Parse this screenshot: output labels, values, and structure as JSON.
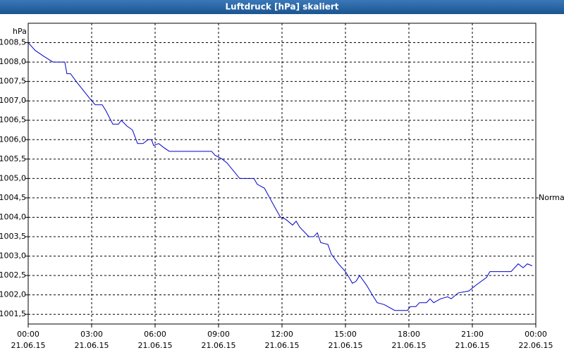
{
  "chart_data": {
    "type": "line",
    "title": "Luftdruck [hPa] skaliert",
    "y_unit_label": "hPa",
    "annotation": {
      "text": "Normal",
      "value": 1004.5
    },
    "grid": true,
    "xlim": [
      0,
      24
    ],
    "ylim": [
      1001.25,
      1009.0
    ],
    "xticks": [
      {
        "value": 0,
        "label": "00:00"
      },
      {
        "value": 3,
        "label": "03:00"
      },
      {
        "value": 6,
        "label": "06:00"
      },
      {
        "value": 9,
        "label": "09:00"
      },
      {
        "value": 12,
        "label": "12:00"
      },
      {
        "value": 15,
        "label": "15:00"
      },
      {
        "value": 18,
        "label": "18:00"
      },
      {
        "value": 21,
        "label": "21:00"
      },
      {
        "value": 24,
        "label": "00:00"
      }
    ],
    "xtick_dates": [
      "21.06.15",
      "21.06.15",
      "21.06.15",
      "21.06.15",
      "21.06.15",
      "21.06.15",
      "21.06.15",
      "21.06.15",
      "22.06.15"
    ],
    "yticks": [
      {
        "value": 1001.5,
        "label": "1001,5"
      },
      {
        "value": 1002.0,
        "label": "1002,0"
      },
      {
        "value": 1002.5,
        "label": "1002,5"
      },
      {
        "value": 1003.0,
        "label": "1003,0"
      },
      {
        "value": 1003.5,
        "label": "1003,5"
      },
      {
        "value": 1004.0,
        "label": "1004,0"
      },
      {
        "value": 1004.5,
        "label": "1004,5"
      },
      {
        "value": 1005.0,
        "label": "1005,0"
      },
      {
        "value": 1005.5,
        "label": "1005,5"
      },
      {
        "value": 1006.0,
        "label": "1006,0"
      },
      {
        "value": 1006.5,
        "label": "1006,5"
      },
      {
        "value": 1007.0,
        "label": "1007,0"
      },
      {
        "value": 1007.5,
        "label": "1007,5"
      },
      {
        "value": 1008.0,
        "label": "1008,0"
      },
      {
        "value": 1008.5,
        "label": "1008,5"
      }
    ],
    "x": [
      0,
      0.33,
      0.73,
      1.17,
      1.73,
      1.83,
      2.0,
      2.27,
      3.0,
      3.17,
      3.5,
      3.67,
      4.0,
      4.27,
      4.4,
      4.67,
      4.93,
      5.17,
      5.43,
      5.67,
      5.83,
      5.93,
      6.17,
      6.4,
      6.67,
      8.67,
      8.83,
      9.17,
      9.4,
      10.0,
      10.67,
      10.83,
      11.17,
      11.67,
      11.93,
      12.17,
      12.5,
      12.67,
      12.83,
      13.27,
      13.5,
      13.67,
      13.83,
      14.17,
      14.33,
      14.67,
      15.0,
      15.17,
      15.33,
      15.5,
      15.67,
      16.0,
      16.27,
      16.5,
      16.83,
      17.33,
      17.93,
      18.07,
      18.33,
      18.5,
      18.83,
      19.0,
      19.17,
      19.5,
      19.83,
      20.0,
      20.33,
      20.83,
      21.17,
      21.67,
      21.83,
      22.83,
      23.17,
      23.4,
      23.6,
      23.83
    ],
    "series": [
      {
        "color": "#0000cc",
        "values": [
          1008.5,
          1008.3,
          1008.15,
          1008.0,
          1008.0,
          1007.7,
          1007.7,
          1007.5,
          1007.0,
          1006.9,
          1006.9,
          1006.75,
          1006.4,
          1006.4,
          1006.5,
          1006.35,
          1006.25,
          1005.9,
          1005.9,
          1006.0,
          1006.0,
          1005.85,
          1005.9,
          1005.8,
          1005.7,
          1005.7,
          1005.6,
          1005.5,
          1005.4,
          1005.0,
          1005.0,
          1004.85,
          1004.75,
          1004.25,
          1004.0,
          1003.95,
          1003.8,
          1003.9,
          1003.75,
          1003.5,
          1003.5,
          1003.6,
          1003.35,
          1003.3,
          1003.05,
          1002.8,
          1002.6,
          1002.45,
          1002.3,
          1002.35,
          1002.5,
          1002.25,
          1002.0,
          1001.8,
          1001.75,
          1001.6,
          1001.6,
          1001.7,
          1001.7,
          1001.8,
          1001.8,
          1001.9,
          1001.8,
          1001.9,
          1001.95,
          1001.9,
          1002.05,
          1002.1,
          1002.25,
          1002.45,
          1002.6,
          1002.6,
          1002.8,
          1002.7,
          1002.8,
          1002.75
        ]
      }
    ]
  }
}
